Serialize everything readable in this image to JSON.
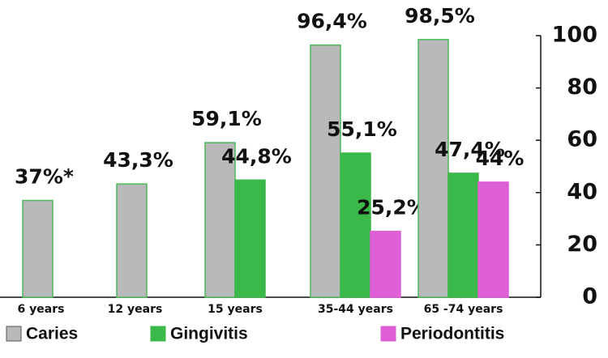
{
  "chart_data": {
    "type": "bar",
    "categories": [
      "6 years",
      "12 years",
      "15 years",
      "35-44 years",
      "65 -74 years"
    ],
    "series": [
      {
        "name": "Caries",
        "color": "#b9b9b9",
        "values": [
          37,
          43.3,
          59.1,
          96.4,
          98.5
        ],
        "value_labels": [
          "37%*",
          "43,3%",
          "59,1%",
          "96,4%",
          "98,5%"
        ]
      },
      {
        "name": "Gingivitis",
        "color": "#3bb84a",
        "values": [
          null,
          null,
          44.8,
          55.1,
          47.4
        ],
        "value_labels": [
          null,
          null,
          "44,8%",
          "55,1%",
          "47,4%"
        ]
      },
      {
        "name": "Periodontitis",
        "color": "#de5fd6",
        "values": [
          null,
          null,
          null,
          25.2,
          44
        ],
        "value_labels": [
          null,
          null,
          null,
          "25,2%",
          "44%"
        ]
      }
    ],
    "ylim": [
      0,
      100
    ],
    "yticks": [
      0,
      20,
      40,
      60,
      80,
      100
    ],
    "y_axis_side": "right",
    "grid": false,
    "legend": "bottom"
  }
}
